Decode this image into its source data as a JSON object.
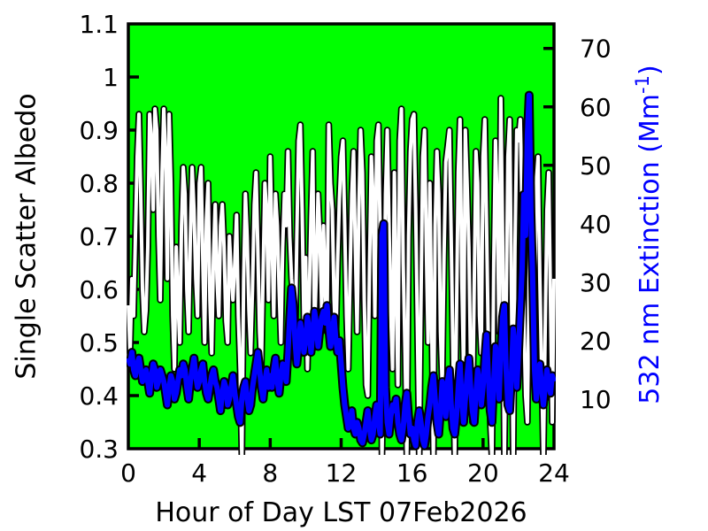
{
  "chart_data": {
    "type": "line",
    "title": "",
    "xlabel": "Hour of Day LST 07Feb2026",
    "ylabel_left": "Single Scatter Albedo",
    "ylabel_right_prefix": "532 nm Extinction (Mm",
    "ylabel_right_sup": "-1",
    "ylabel_right_suffix": ")",
    "plot_bg": "#00ff00",
    "grid": false,
    "legend": "none",
    "x_range": [
      0,
      24
    ],
    "x_tick_values": [
      0,
      4,
      8,
      12,
      16,
      20,
      24
    ],
    "x_tick_labels": [
      "0",
      "4",
      "8",
      "12",
      "16",
      "20",
      "24"
    ],
    "x_tick_marks": [
      4,
      8,
      12,
      16,
      20
    ],
    "y_left_range": [
      0.3,
      1.1
    ],
    "y_left_tick_values": [
      0.3,
      0.4,
      0.5,
      0.6,
      0.7,
      0.8,
      0.9,
      1.0,
      1.1
    ],
    "y_left_tick_labels": [
      "0.3",
      "0.4",
      "0.5",
      "0.6",
      "0.7",
      "0.8",
      "0.9",
      "1",
      "1.1"
    ],
    "y_left_tick_marks": [
      0.4,
      0.5,
      0.6,
      0.7,
      0.8,
      0.9,
      1.0
    ],
    "y_right_range": [
      1.5,
      74.2
    ],
    "y_right_tick_values": [
      10,
      20,
      30,
      40,
      50,
      60,
      70
    ],
    "y_right_tick_labels": [
      "10",
      "20",
      "30",
      "40",
      "50",
      "60",
      "70"
    ],
    "series": [
      {
        "name": "Single Scatter Albedo",
        "axis": "left",
        "color": "#ffffff",
        "outline_color": "#000000",
        "x_start": 0,
        "x_step": 0.1,
        "values": [
          0.57,
          0.48,
          0.62,
          0.55,
          0.7,
          0.85,
          0.93,
          0.78,
          0.6,
          0.52,
          0.56,
          0.68,
          0.93,
          0.88,
          0.75,
          0.94,
          0.9,
          0.7,
          0.58,
          0.82,
          0.94,
          0.85,
          0.62,
          0.93,
          0.8,
          0.55,
          0.45,
          0.68,
          0.58,
          0.5,
          0.72,
          0.83,
          0.78,
          0.6,
          0.52,
          0.7,
          0.83,
          0.75,
          0.62,
          0.55,
          0.8,
          0.83,
          0.65,
          0.5,
          0.73,
          0.8,
          0.58,
          0.48,
          0.66,
          0.76,
          0.62,
          0.55,
          0.72,
          0.76,
          0.68,
          0.54,
          0.5,
          0.7,
          0.63,
          0.58,
          0.65,
          0.74,
          0.55,
          0.45,
          0.28,
          0.62,
          0.78,
          0.7,
          0.56,
          0.48,
          0.6,
          0.76,
          0.82,
          0.68,
          0.52,
          0.45,
          0.63,
          0.8,
          0.74,
          0.58,
          0.85,
          0.7,
          0.55,
          0.78,
          0.72,
          0.6,
          0.5,
          0.68,
          0.78,
          0.72,
          0.86,
          0.7,
          0.62,
          0.58,
          0.48,
          0.7,
          0.88,
          0.91,
          0.75,
          0.54,
          0.66,
          0.45,
          0.58,
          0.74,
          0.86,
          0.52,
          0.63,
          0.78,
          0.7,
          0.56,
          0.72,
          0.6,
          0.52,
          0.91,
          0.8,
          0.75,
          0.58,
          0.5,
          0.65,
          0.77,
          0.85,
          0.88,
          0.72,
          0.55,
          0.45,
          0.62,
          0.78,
          0.86,
          0.68,
          0.52,
          0.75,
          0.9,
          0.82,
          0.58,
          0.42,
          0.4,
          0.65,
          0.85,
          0.77,
          0.55,
          0.88,
          0.91,
          0.7,
          0.28,
          0.5,
          0.78,
          0.9,
          0.72,
          0.55,
          0.45,
          0.82,
          0.6,
          0.42,
          0.88,
          0.94,
          0.65,
          0.48,
          0.28,
          0.7,
          0.86,
          0.92,
          0.93,
          0.75,
          0.52,
          0.28,
          0.58,
          0.85,
          0.9,
          0.68,
          0.5,
          0.8,
          0.55,
          0.28,
          0.72,
          0.86,
          0.78,
          0.52,
          0.42,
          0.66,
          0.84,
          0.87,
          0.9,
          0.7,
          0.48,
          0.28,
          0.55,
          0.82,
          0.92,
          0.62,
          0.45,
          0.9,
          0.8,
          0.68,
          0.45,
          0.35,
          0.6,
          0.86,
          0.8,
          0.55,
          0.48,
          0.85,
          0.92,
          0.72,
          0.5,
          0.35,
          0.28,
          0.65,
          0.88,
          0.75,
          0.52,
          0.96,
          0.7,
          0.28,
          0.55,
          0.85,
          0.92,
          0.6,
          0.28,
          0.68,
          0.9,
          0.88,
          0.92,
          0.75,
          0.55,
          0.4,
          0.35,
          0.62,
          0.85,
          0.78,
          0.58,
          0.8,
          0.85,
          0.62,
          0.45,
          0.28,
          0.52,
          0.75,
          0.82,
          0.58,
          0.35,
          0.62
        ]
      },
      {
        "name": "532 nm Extinction",
        "axis": "right",
        "color": "#0000ff",
        "outline_color": "#000000",
        "x_start": 0,
        "x_step": 0.1,
        "values": [
          17,
          16,
          18,
          15,
          14,
          16,
          17,
          15,
          13,
          14,
          15,
          13,
          11,
          14,
          16,
          15,
          12,
          13,
          15,
          14,
          13,
          11,
          9,
          12,
          14,
          13,
          10,
          11,
          13,
          15,
          14,
          16,
          15,
          12,
          10,
          13,
          15,
          17,
          14,
          12,
          13,
          15,
          16,
          13,
          11,
          10,
          12,
          14,
          15,
          13,
          12,
          10,
          8,
          11,
          13,
          12,
          9,
          10,
          12,
          14,
          11,
          9,
          7,
          6,
          10,
          12,
          13,
          10,
          8,
          9,
          12,
          14,
          16,
          18,
          15,
          12,
          10,
          13,
          15,
          12,
          14,
          12,
          15,
          17,
          13,
          11,
          14,
          16,
          15,
          13,
          18,
          24,
          29,
          26,
          20,
          16,
          19,
          23,
          21,
          18,
          20,
          24,
          22,
          18,
          21,
          25,
          23,
          19,
          22,
          24,
          25,
          23,
          26,
          22,
          19,
          21,
          24,
          20,
          18,
          20,
          16,
          12,
          9,
          7,
          5,
          6,
          8,
          5,
          4,
          6,
          5,
          3,
          2.5,
          4,
          6,
          8,
          5,
          3,
          4,
          7,
          9,
          6,
          4,
          38,
          40,
          12,
          6,
          4,
          7,
          9,
          8,
          10,
          6,
          4,
          3,
          5,
          9,
          11,
          7,
          4,
          5,
          3,
          2,
          6,
          8,
          6,
          3,
          2,
          4,
          7,
          9,
          12,
          14,
          10,
          6,
          4,
          8,
          13,
          11,
          7,
          13,
          15,
          9,
          5,
          4,
          7,
          12,
          16,
          10,
          6,
          10,
          14,
          17,
          12,
          8,
          6,
          11,
          15,
          13,
          9,
          12,
          17,
          21,
          14,
          8,
          6,
          13,
          19,
          16,
          10,
          18,
          24,
          26,
          15,
          9,
          8,
          14,
          22,
          19,
          12,
          18,
          25,
          32,
          45,
          38,
          55,
          62,
          42,
          30,
          15,
          10,
          13,
          16,
          12,
          9,
          12,
          15,
          13,
          11,
          14,
          13
        ]
      }
    ]
  }
}
